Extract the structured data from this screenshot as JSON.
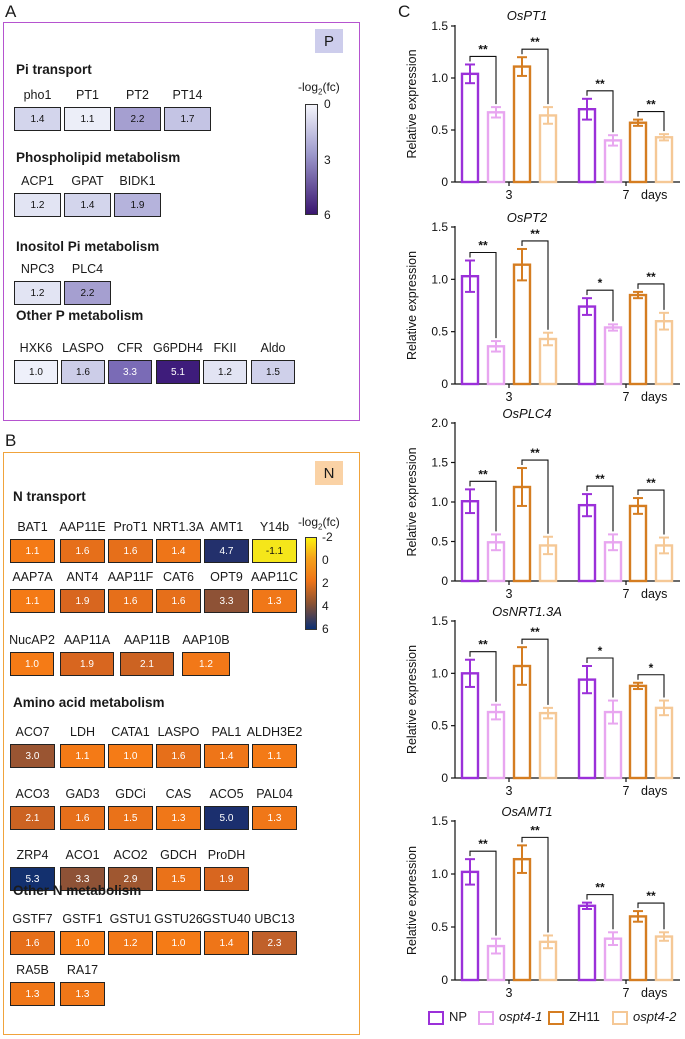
{
  "panel_a": {
    "label": "A",
    "badge": "P",
    "scale_title": "-log",
    "scale_sub": "2",
    "scale_title_end": "(fc)",
    "scale_ticks": [
      "0",
      "3",
      "6"
    ],
    "sections": [
      {
        "title": "Pi transport",
        "genes": [
          {
            "name": "pho1",
            "value": "1.4",
            "color": "#d3d5ec"
          },
          {
            "name": "PT1",
            "value": "1.1",
            "color": "#eceef8"
          },
          {
            "name": "PT2",
            "value": "2.2",
            "color": "#a59fd0"
          },
          {
            "name": "PT14",
            "value": "1.7",
            "color": "#c4c4e4"
          }
        ]
      },
      {
        "title": "Phospholipid metabolism",
        "genes": [
          {
            "name": "ACP1",
            "value": "1.2",
            "color": "#e2e4f3"
          },
          {
            "name": "GPAT",
            "value": "1.4",
            "color": "#d3d5ec"
          },
          {
            "name": "BIDK1",
            "value": "1.9",
            "color": "#b5b3dc"
          }
        ]
      },
      {
        "title": "Inositol Pi metabolism",
        "genes": [
          {
            "name": "NPC3",
            "value": "1.2",
            "color": "#e2e4f3"
          },
          {
            "name": "PLC4",
            "value": "2.2",
            "color": "#a59fd0"
          }
        ]
      },
      {
        "title": "Other P metabolism",
        "genes": [
          {
            "name": "HXK6",
            "value": "1.0",
            "color": "#eef0fa"
          },
          {
            "name": "LASPO",
            "value": "1.6",
            "color": "#cccde8"
          },
          {
            "name": "CFR",
            "value": "3.3",
            "color": "#7a6bb6"
          },
          {
            "name": "G6PDH4",
            "value": "5.1",
            "color": "#3e1c7b"
          },
          {
            "name": "FKII",
            "value": "1.2",
            "color": "#e2e4f3"
          },
          {
            "name": "Aldo",
            "value": "1.5",
            "color": "#cfd0ea"
          }
        ]
      }
    ]
  },
  "panel_b": {
    "label": "B",
    "badge": "N",
    "scale_title": "-log",
    "scale_sub": "2",
    "scale_title_end": "(fc)",
    "scale_ticks": [
      "-2",
      "0",
      "2",
      "4",
      "6"
    ],
    "sections": [
      {
        "title": "N transport",
        "rows": [
          [
            {
              "name": "BAT1",
              "value": "1.1",
              "color": "#f47a16"
            },
            {
              "name": "AAP11E",
              "value": "1.6",
              "color": "#e66f1a"
            },
            {
              "name": "ProT1",
              "value": "1.6",
              "color": "#e66f1a"
            },
            {
              "name": "NRT1.3A",
              "value": "1.4",
              "color": "#ee7518"
            },
            {
              "name": "AMT1",
              "value": "4.7",
              "color": "#23306c"
            },
            {
              "name": "Y14b",
              "value": "-1.1",
              "color": "#f5e61a"
            }
          ],
          [
            {
              "name": "AAP7A",
              "value": "1.1",
              "color": "#f47a16"
            },
            {
              "name": "ANT4",
              "value": "1.9",
              "color": "#d8661f"
            },
            {
              "name": "AAP11F",
              "value": "1.6",
              "color": "#e66f1a"
            },
            {
              "name": "CAT6",
              "value": "1.6",
              "color": "#e66f1a"
            },
            {
              "name": "OPT9",
              "value": "3.3",
              "color": "#8e5236"
            },
            {
              "name": "AAP11C",
              "value": "1.3",
              "color": "#f07718"
            }
          ],
          [
            {
              "name": "NucAP2",
              "value": "1.0",
              "color": "#f57b16"
            },
            {
              "name": "AAP11A",
              "value": "1.9",
              "color": "#d8661f"
            },
            {
              "name": "AAP11B",
              "value": "2.1",
              "color": "#cc6322"
            },
            {
              "name": "AAP10B",
              "value": "1.2",
              "color": "#f27818"
            }
          ]
        ]
      },
      {
        "title": "Amino acid metabolism",
        "rows": [
          [
            {
              "name": "ACO7",
              "value": "3.0",
              "color": "#9a5532"
            },
            {
              "name": "LDH",
              "value": "1.1",
              "color": "#f47a16"
            },
            {
              "name": "CATA1",
              "value": "1.0",
              "color": "#f57b16"
            },
            {
              "name": "LASPO",
              "value": "1.6",
              "color": "#e66f1a"
            },
            {
              "name": "PAL1",
              "value": "1.4",
              "color": "#ee7518"
            },
            {
              "name": "ALDH3E2",
              "value": "1.1",
              "color": "#f47a16"
            }
          ],
          [
            {
              "name": "ACO3",
              "value": "2.1",
              "color": "#cc6322"
            },
            {
              "name": "GAD3",
              "value": "1.6",
              "color": "#e66f1a"
            },
            {
              "name": "GDCi",
              "value": "1.5",
              "color": "#ea7219"
            },
            {
              "name": "CAS",
              "value": "1.3",
              "color": "#f07718"
            },
            {
              "name": "ACO5",
              "value": "5.0",
              "color": "#1b2f6e"
            },
            {
              "name": "PAL04",
              "value": "1.3",
              "color": "#f07718"
            }
          ],
          [
            {
              "name": "ZRP4",
              "value": "5.3",
              "color": "#13306e"
            },
            {
              "name": "ACO1",
              "value": "3.3",
              "color": "#8e5236"
            },
            {
              "name": "ACO2",
              "value": "2.9",
              "color": "#9f5730"
            },
            {
              "name": "GDCH",
              "value": "1.5",
              "color": "#ea7219"
            },
            {
              "name": "ProDH",
              "value": "1.9",
              "color": "#d8661f"
            }
          ]
        ]
      },
      {
        "title": "Other N metabolism",
        "rows": [
          [
            {
              "name": "GSTF7",
              "value": "1.6",
              "color": "#e66f1a"
            },
            {
              "name": "GSTF1",
              "value": "1.0",
              "color": "#f57b16"
            },
            {
              "name": "GSTU1",
              "value": "1.2",
              "color": "#f27818"
            },
            {
              "name": "GSTU26",
              "value": "1.0",
              "color": "#f57b16"
            },
            {
              "name": "GSTU40",
              "value": "1.4",
              "color": "#ee7518"
            },
            {
              "name": "UBC13",
              "value": "2.3",
              "color": "#c0602a"
            }
          ],
          [
            {
              "name": "RA5B",
              "value": "1.3",
              "color": "#f07718"
            },
            {
              "name": "RA17",
              "value": "1.3",
              "color": "#f07718"
            }
          ]
        ]
      }
    ]
  },
  "panel_c": {
    "label": "C",
    "legend": [
      {
        "name": "NP",
        "color": "#9b30d9",
        "italic": false
      },
      {
        "name": "ospt4-1",
        "color": "#e8a6f0",
        "italic": true
      },
      {
        "name": "ZH11",
        "color": "#d57d21",
        "italic": false
      },
      {
        "name": "ospt4-2",
        "color": "#f5c896",
        "italic": true
      }
    ]
  },
  "chart_data": [
    {
      "type": "bar",
      "title": "OsPT1",
      "ylabel": "Relative expression",
      "xlabel": "days",
      "categories": [
        "3",
        "7"
      ],
      "ylim": [
        0,
        1.5
      ],
      "yticks": [
        "0",
        "0.5",
        "1.0",
        "1.5"
      ],
      "series": [
        {
          "name": "NP",
          "values": [
            1.04,
            0.7
          ],
          "errors": [
            0.09,
            0.1
          ]
        },
        {
          "name": "ospt4-1",
          "values": [
            0.67,
            0.4
          ],
          "errors": [
            0.05,
            0.05
          ]
        },
        {
          "name": "ZH11",
          "values": [
            1.11,
            0.57
          ],
          "errors": [
            0.09,
            0.03
          ]
        },
        {
          "name": "ospt4-2",
          "values": [
            0.64,
            0.43
          ],
          "errors": [
            0.08,
            0.03
          ]
        }
      ],
      "significance": [
        "**",
        "**",
        "**",
        "**"
      ]
    },
    {
      "type": "bar",
      "title": "OsPT2",
      "ylabel": "Relative expression",
      "xlabel": "days",
      "categories": [
        "3",
        "7"
      ],
      "ylim": [
        0,
        1.5
      ],
      "yticks": [
        "0",
        "0.5",
        "1.0",
        "1.5"
      ],
      "series": [
        {
          "name": "NP",
          "values": [
            1.03,
            0.74
          ],
          "errors": [
            0.15,
            0.08
          ]
        },
        {
          "name": "ospt4-1",
          "values": [
            0.36,
            0.54
          ],
          "errors": [
            0.05,
            0.03
          ]
        },
        {
          "name": "ZH11",
          "values": [
            1.14,
            0.85
          ],
          "errors": [
            0.15,
            0.03
          ]
        },
        {
          "name": "ospt4-2",
          "values": [
            0.43,
            0.6
          ],
          "errors": [
            0.06,
            0.08
          ]
        }
      ],
      "significance": [
        "**",
        "**",
        "*",
        "**"
      ]
    },
    {
      "type": "bar",
      "title": "OsPLC4",
      "ylabel": "Relative expression",
      "xlabel": "days",
      "categories": [
        "3",
        "7"
      ],
      "ylim": [
        0,
        2.0
      ],
      "yticks": [
        "0",
        "0.5",
        "1.0",
        "1.5",
        "2.0"
      ],
      "series": [
        {
          "name": "NP",
          "values": [
            1.01,
            0.96
          ],
          "errors": [
            0.15,
            0.14
          ]
        },
        {
          "name": "ospt4-1",
          "values": [
            0.49,
            0.49
          ],
          "errors": [
            0.1,
            0.1
          ]
        },
        {
          "name": "ZH11",
          "values": [
            1.19,
            0.95
          ],
          "errors": [
            0.24,
            0.1
          ]
        },
        {
          "name": "ospt4-2",
          "values": [
            0.45,
            0.45
          ],
          "errors": [
            0.11,
            0.1
          ]
        }
      ],
      "significance": [
        "**",
        "**",
        "**",
        "**"
      ]
    },
    {
      "type": "bar",
      "title": "OsNRT1.3A",
      "ylabel": "Relative expression",
      "xlabel": "days",
      "categories": [
        "3",
        "7"
      ],
      "ylim": [
        0,
        1.5
      ],
      "yticks": [
        "0",
        "0.5",
        "1.0",
        "1.5"
      ],
      "series": [
        {
          "name": "NP",
          "values": [
            1.0,
            0.94
          ],
          "errors": [
            0.13,
            0.13
          ]
        },
        {
          "name": "ospt4-1",
          "values": [
            0.63,
            0.63
          ],
          "errors": [
            0.07,
            0.11
          ]
        },
        {
          "name": "ZH11",
          "values": [
            1.07,
            0.88
          ],
          "errors": [
            0.18,
            0.03
          ]
        },
        {
          "name": "ospt4-2",
          "values": [
            0.62,
            0.67
          ],
          "errors": [
            0.05,
            0.07
          ]
        }
      ],
      "significance": [
        "**",
        "**",
        "*",
        "*"
      ]
    },
    {
      "type": "bar",
      "title": "OsAMT1",
      "ylabel": "Relative expression",
      "xlabel": "days",
      "categories": [
        "3",
        "7"
      ],
      "ylim": [
        0,
        1.5
      ],
      "yticks": [
        "0",
        "0.5",
        "1.0",
        "1.5"
      ],
      "series": [
        {
          "name": "NP",
          "values": [
            1.02,
            0.7
          ],
          "errors": [
            0.12,
            0.03
          ]
        },
        {
          "name": "ospt4-1",
          "values": [
            0.32,
            0.39
          ],
          "errors": [
            0.07,
            0.06
          ]
        },
        {
          "name": "ZH11",
          "values": [
            1.14,
            0.6
          ],
          "errors": [
            0.13,
            0.05
          ]
        },
        {
          "name": "ospt4-2",
          "values": [
            0.36,
            0.41
          ],
          "errors": [
            0.06,
            0.04
          ]
        }
      ],
      "significance": [
        "**",
        "**",
        "**",
        "**"
      ]
    }
  ]
}
